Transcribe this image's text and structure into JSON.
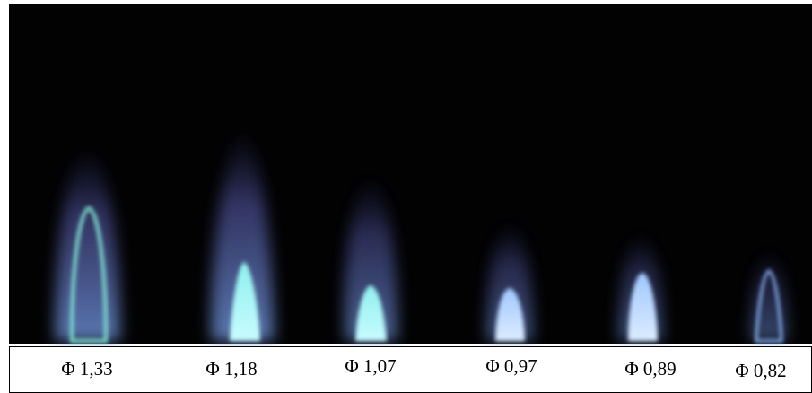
{
  "figure": {
    "labels": [
      "Φ 1,33",
      "Φ 1,18",
      "Φ 1,07",
      "Φ 0,97",
      "Φ 0,89",
      "Φ 0,82"
    ]
  }
}
